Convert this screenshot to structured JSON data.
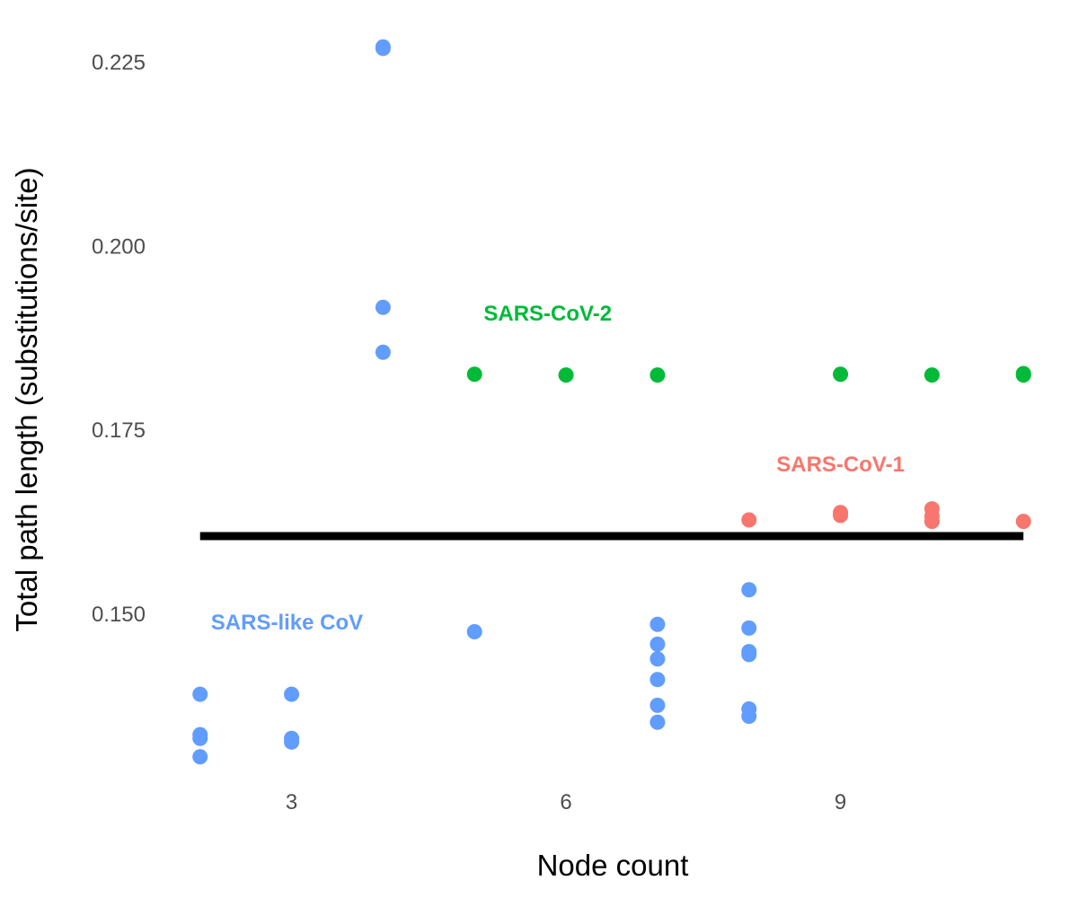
{
  "chart_data": {
    "type": "scatter",
    "xlabel": "Node count",
    "ylabel": "Total path length (substitutions/site)",
    "xlim": [
      1.6,
      11.4
    ],
    "ylim": [
      0.129,
      0.2285
    ],
    "x_ticks": [
      3,
      6,
      9
    ],
    "y_ticks": [
      0.15,
      0.175,
      0.2,
      0.225
    ],
    "x_tick_labels": [
      "3",
      "6",
      "9"
    ],
    "y_tick_labels": [
      "0.150",
      "0.175",
      "0.200",
      "0.225"
    ],
    "grid": false,
    "legend": "none",
    "reference_line": {
      "y": 0.1605,
      "x_start": 2,
      "x_end": 11,
      "color": "#000000"
    },
    "series": [
      {
        "name": "SARS-like CoV",
        "color": "#619CFF",
        "label_anchor": {
          "x": 2.95,
          "y": 0.1478
        },
        "points": [
          [
            2,
            0.139
          ],
          [
            2,
            0.1335
          ],
          [
            2,
            0.133
          ],
          [
            2,
            0.1305
          ],
          [
            3,
            0.139
          ],
          [
            3,
            0.133
          ],
          [
            3,
            0.1325
          ],
          [
            4,
            0.227
          ],
          [
            4,
            0.2268
          ],
          [
            4,
            0.1916
          ],
          [
            4,
            0.1855
          ],
          [
            5,
            0.1475
          ],
          [
            7,
            0.1485
          ],
          [
            7,
            0.1458
          ],
          [
            7,
            0.1438
          ],
          [
            7,
            0.141
          ],
          [
            7,
            0.1375
          ],
          [
            7,
            0.1352
          ],
          [
            8,
            0.1532
          ],
          [
            8,
            0.148
          ],
          [
            8,
            0.1448
          ],
          [
            8,
            0.1444
          ],
          [
            8,
            0.137
          ],
          [
            8,
            0.136
          ]
        ]
      },
      {
        "name": "SARS-CoV-2",
        "color": "#00BA38",
        "label_anchor": {
          "x": 5.8,
          "y": 0.1898
        },
        "points": [
          [
            5,
            0.1825
          ],
          [
            6,
            0.1824
          ],
          [
            7,
            0.1824
          ],
          [
            9,
            0.1825
          ],
          [
            10,
            0.1824
          ],
          [
            11,
            0.1826
          ],
          [
            11,
            0.1824
          ]
        ]
      },
      {
        "name": "SARS-CoV-1",
        "color": "#F8766D",
        "label_anchor": {
          "x": 9.0,
          "y": 0.1693
        },
        "points": [
          [
            8,
            0.1627
          ],
          [
            9,
            0.1637
          ],
          [
            9,
            0.1633
          ],
          [
            10,
            0.1642
          ],
          [
            10,
            0.1632
          ],
          [
            10,
            0.1625
          ],
          [
            11,
            0.1625
          ]
        ]
      }
    ]
  }
}
